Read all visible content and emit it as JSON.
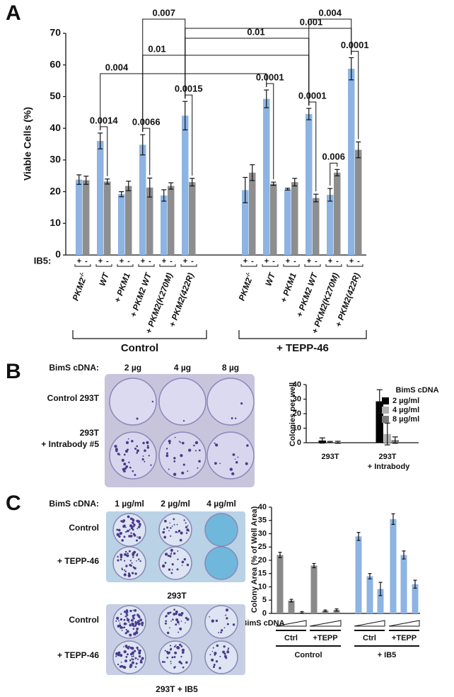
{
  "chart_data": [
    {
      "panel": "A",
      "type": "bar",
      "ylabel": "Viable Cells (%)",
      "ylim": [
        0,
        70
      ],
      "yticks": [
        0,
        10,
        20,
        30,
        40,
        50,
        60,
        70
      ],
      "categories": [
        "PKM2-/-",
        "WT",
        "+ PKM1",
        "+ PKM2 WT",
        "+ PKM2(K270M)",
        "+ PKM2(422R)",
        "PKM2-/-",
        "WT",
        "+ PKM1",
        "+ PKM2 WT",
        "+ PKM2(K270M)",
        "+ PKM2(422R)"
      ],
      "series_label": "IB5:",
      "series": [
        {
          "name": "+",
          "color": "#8db4e2",
          "values": [
            23.8,
            36,
            19.2,
            34.8,
            18.8,
            44,
            20.5,
            49.3,
            20.8,
            44.5,
            19,
            58.8
          ],
          "errors": [
            1.5,
            2.5,
            0.8,
            3.2,
            1.8,
            4.5,
            4,
            2.8,
            0.3,
            1.8,
            2,
            3.5
          ]
        },
        {
          "name": "-",
          "color": "#8e8e8e",
          "values": [
            23.6,
            23.2,
            21.8,
            21.3,
            21.8,
            23,
            26,
            22.5,
            23,
            18,
            26,
            33.2
          ],
          "errors": [
            1.3,
            0.8,
            1.5,
            3,
            1,
            1.2,
            2.5,
            0.5,
            1.2,
            1.2,
            1,
            2.5
          ]
        }
      ],
      "groups": [
        "Control",
        "+ TEPP-46"
      ],
      "annotations": [
        "0.007",
        "0.004",
        "0.001",
        "0.01",
        "0.01",
        "0.004",
        "0.0014",
        "0.0066",
        "0.0015",
        "0.0001",
        "0.0001",
        "0.006",
        "0.0001"
      ]
    },
    {
      "panel": "B",
      "type": "bar",
      "ylabel": "Colonies per well",
      "ylim": [
        0,
        40
      ],
      "yticks": [
        0,
        10,
        20,
        30,
        40
      ],
      "categories": [
        "293T",
        "293T + Intrabody"
      ],
      "legend_title": "BimS cDNA",
      "series": [
        {
          "name": "2 µg/ml",
          "color": "#000000",
          "values": [
            1.5,
            28.5
          ],
          "errors": [
            1.8,
            8
          ]
        },
        {
          "name": "4 µg/ml",
          "color": "#b0b0b0",
          "values": [
            0.5,
            6
          ],
          "errors": [
            0.4,
            7.5
          ]
        },
        {
          "name": "8 µg/ml",
          "color": "#7a7a7a",
          "values": [
            0.3,
            1.8
          ],
          "errors": [
            0.7,
            2.2
          ]
        }
      ]
    },
    {
      "panel": "C",
      "type": "bar",
      "ylabel": "Colony Area (% of Well Area)",
      "ylim": [
        0,
        40
      ],
      "yticks": [
        0,
        5,
        10,
        15,
        20,
        25,
        30,
        35,
        40
      ],
      "values": [
        22,
        4.8,
        0.4,
        18,
        1,
        1.3,
        29,
        14,
        9.2,
        35.5,
        22,
        11
      ],
      "errors": [
        1,
        0.5,
        0.3,
        0.8,
        0.3,
        0.4,
        1.5,
        1,
        2.5,
        2,
        1.5,
        1.5
      ],
      "colors": [
        "#8a8a8a",
        "#8a8a8a",
        "#8a8a8a",
        "#8a8a8a",
        "#8a8a8a",
        "#8a8a8a",
        "#8db4e2",
        "#8db4e2",
        "#8db4e2",
        "#8db4e2",
        "#8db4e2",
        "#8db4e2"
      ],
      "xlabel": "BimS cDNA",
      "groups": [
        "Ctrl",
        "+TEPP",
        "Ctrl",
        "+TEPP"
      ],
      "supergroups": [
        "Control",
        "+ IB5"
      ]
    }
  ],
  "photos": {
    "B": {
      "header": "BimS cDNA:",
      "columns": [
        "2 µg",
        "4 µg",
        "8 µg"
      ],
      "rows": [
        "Control 293T",
        "293T + Intrabody #5"
      ]
    },
    "C": {
      "header": "BimS cDNA:",
      "columns": [
        "1 µg/ml",
        "2 µg/ml",
        "4 µg/ml"
      ],
      "plates": [
        {
          "rows": [
            "Control",
            "+ TEPP-46"
          ],
          "caption": "293T"
        },
        {
          "rows": [
            "Control",
            "+ TEPP-46"
          ],
          "caption": "293T + IB5"
        }
      ]
    }
  }
}
